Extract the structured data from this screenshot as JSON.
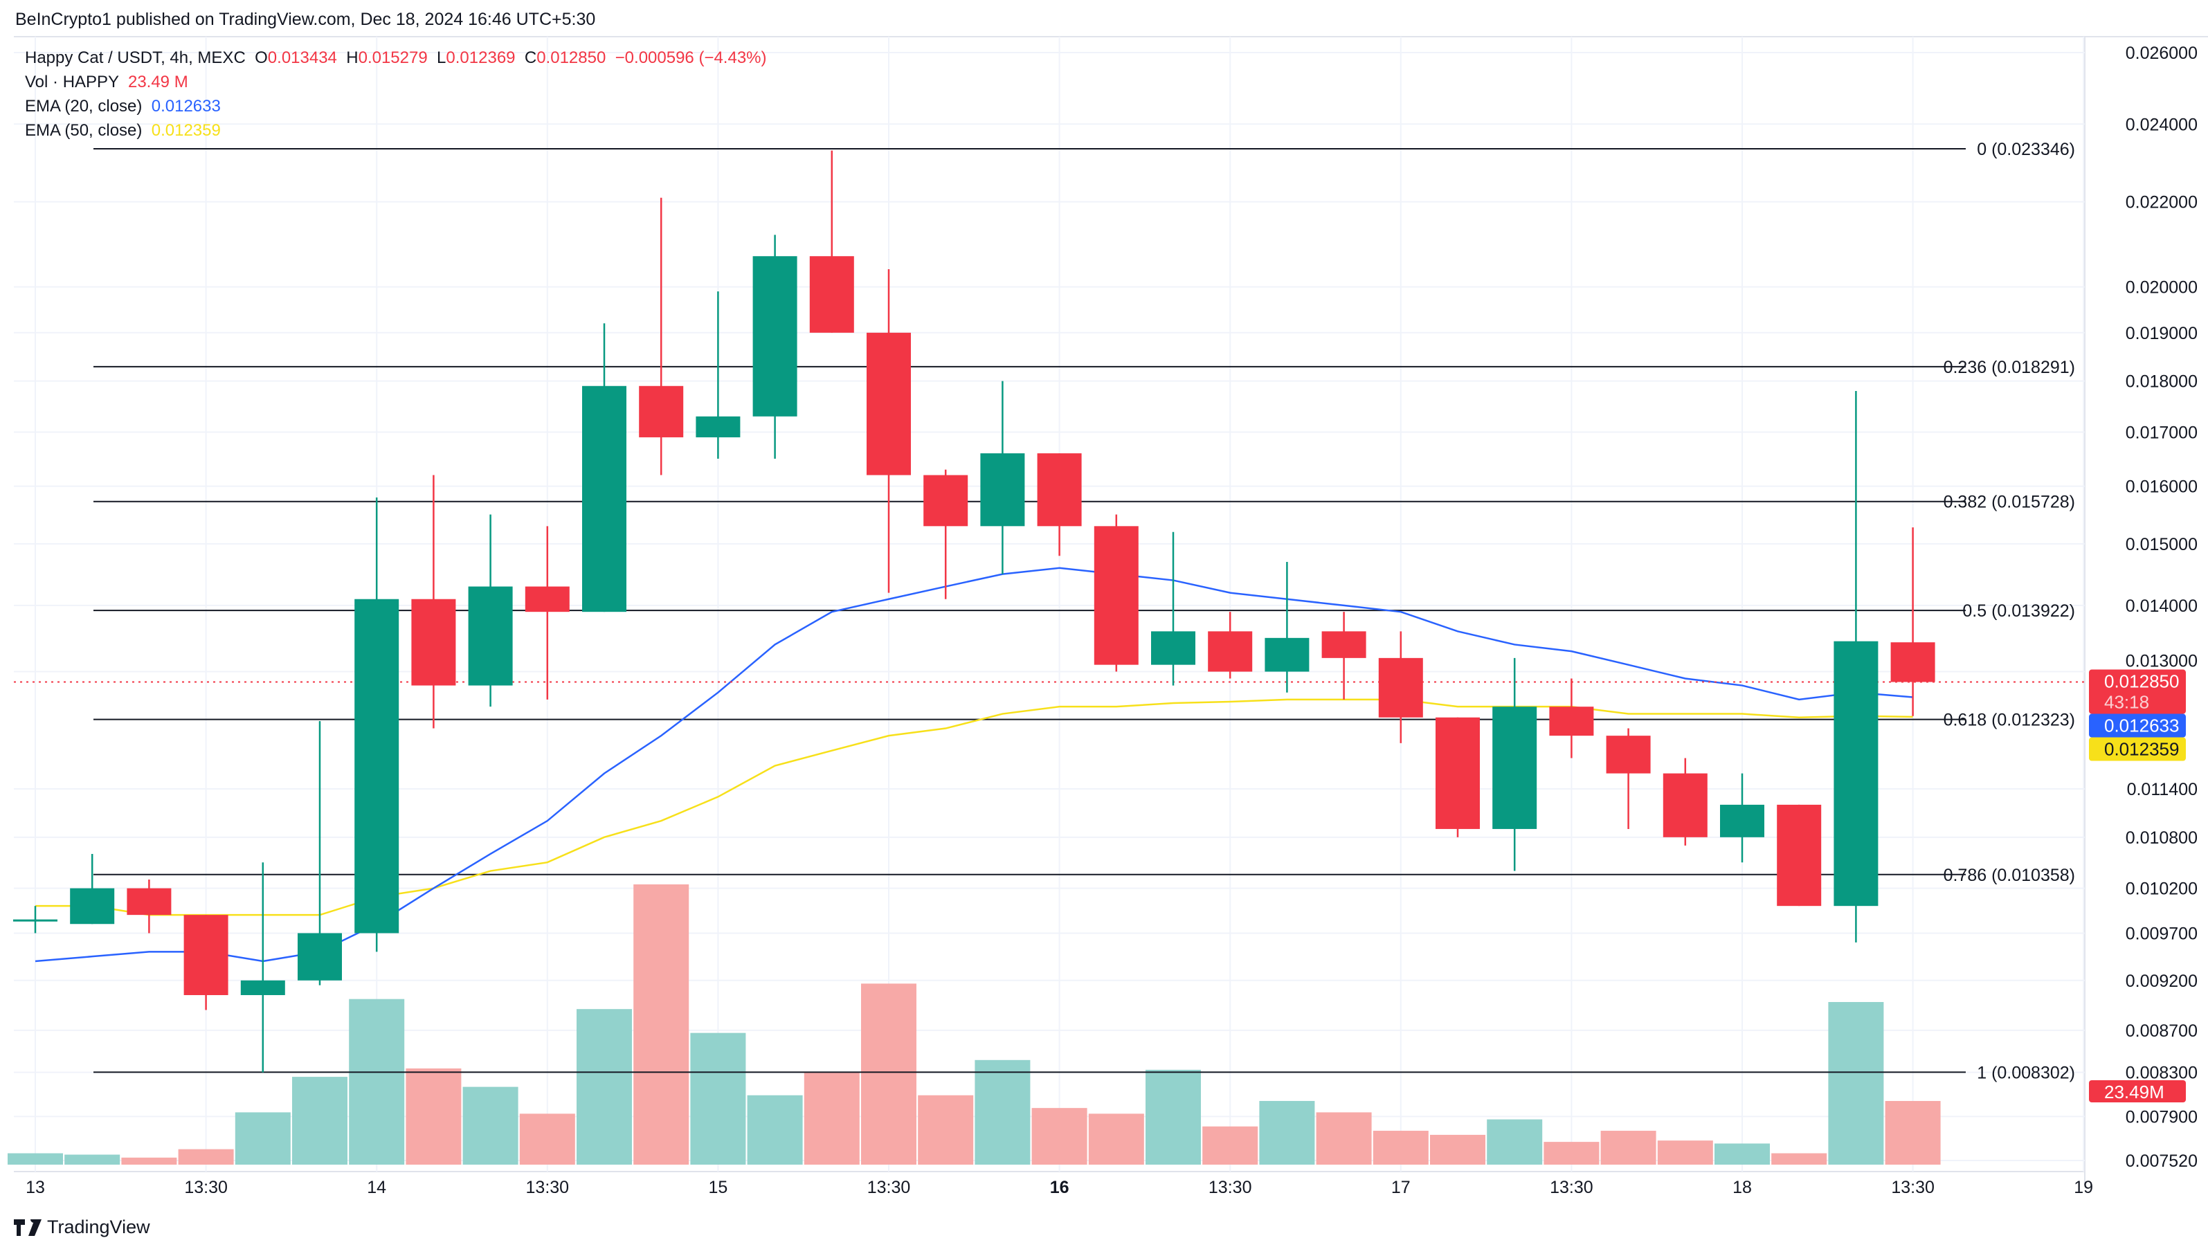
{
  "header": {
    "published": "BeInCrypto1 published on TradingView.com, Dec 18, 2024 16:46 UTC+5:30"
  },
  "legend": {
    "symbol": "Happy Cat / USDT, 4h, MEXC",
    "o_label": "O",
    "o": "0.013434",
    "h_label": "H",
    "h": "0.015279",
    "l_label": "L",
    "l": "0.012369",
    "c_label": "C",
    "c": "0.012850",
    "change": "−0.000596 (−4.43%)",
    "vol_label": "Vol · HAPPY",
    "vol": "23.49 M",
    "ema20_label": "EMA (20, close)",
    "ema20": "0.012633",
    "ema50_label": "EMA (50, close)",
    "ema50": "0.012359"
  },
  "brand": {
    "name": "TradingView",
    "icon": "tradingview-logo-icon"
  },
  "colors": {
    "up": "#089981",
    "down": "#f23645",
    "vol_up": "#92d2cc",
    "vol_down": "#f7a9a7",
    "ema20": "#2962ff",
    "ema50": "#f7e01a",
    "fib": "#131722",
    "grid": "#f0f3fa"
  },
  "chart_data": {
    "type": "candlestick",
    "y_scale": "log",
    "ylim": [
      0.00752,
      0.026
    ],
    "y_ticks": [
      "0.026000",
      "0.024000",
      "0.022000",
      "0.020000",
      "0.019000",
      "0.018000",
      "0.017000",
      "0.016000",
      "0.015000",
      "0.014000",
      "0.013000",
      "0.011400",
      "0.010800",
      "0.010200",
      "0.009700",
      "0.009200",
      "0.008700",
      "0.008300",
      "0.007900",
      "0.007520"
    ],
    "x_ticks": [
      {
        "label": "13",
        "candle": 0
      },
      {
        "label": "13:30",
        "candle": 3
      },
      {
        "label": "14",
        "candle": 6
      },
      {
        "label": "13:30",
        "candle": 9
      },
      {
        "label": "15",
        "candle": 12
      },
      {
        "label": "13:30",
        "candle": 15
      },
      {
        "label": "16",
        "candle": 18,
        "bold": true
      },
      {
        "label": "13:30",
        "candle": 21
      },
      {
        "label": "17",
        "candle": 24
      },
      {
        "label": "13:30",
        "candle": 27
      },
      {
        "label": "18",
        "candle": 30
      },
      {
        "label": "13:30",
        "candle": 33
      },
      {
        "label": "19",
        "candle": 36
      }
    ],
    "grid": true,
    "candles": [
      [
        0.00985,
        0.01,
        0.0097,
        0.00985
      ],
      [
        0.0098,
        0.0106,
        0.0098,
        0.0102
      ],
      [
        0.0102,
        0.0103,
        0.0097,
        0.0099
      ],
      [
        0.0099,
        0.0099,
        0.0089,
        0.00905
      ],
      [
        0.00905,
        0.0105,
        0.0083,
        0.0092
      ],
      [
        0.0092,
        0.0123,
        0.00915,
        0.0097
      ],
      [
        0.0097,
        0.0158,
        0.0095,
        0.0141
      ],
      [
        0.0141,
        0.0162,
        0.0122,
        0.0128
      ],
      [
        0.0128,
        0.0155,
        0.0125,
        0.0143
      ],
      [
        0.0143,
        0.0153,
        0.0126,
        0.0139
      ],
      [
        0.0139,
        0.0192,
        0.0139,
        0.0179
      ],
      [
        0.0179,
        0.0221,
        0.0162,
        0.0169
      ],
      [
        0.0169,
        0.0199,
        0.0165,
        0.0173
      ],
      [
        0.0173,
        0.0212,
        0.0165,
        0.0207
      ],
      [
        0.0207,
        0.0233,
        0.019,
        0.019
      ],
      [
        0.019,
        0.0204,
        0.0142,
        0.0162
      ],
      [
        0.0162,
        0.0163,
        0.0141,
        0.0153
      ],
      [
        0.0153,
        0.018,
        0.0145,
        0.0166
      ],
      [
        0.0166,
        0.0166,
        0.0148,
        0.0153
      ],
      [
        0.0153,
        0.0155,
        0.013,
        0.0131
      ],
      [
        0.0131,
        0.0152,
        0.0128,
        0.0136
      ],
      [
        0.0136,
        0.0139,
        0.0129,
        0.013
      ],
      [
        0.013,
        0.0147,
        0.0127,
        0.0135
      ],
      [
        0.0136,
        0.0139,
        0.0126,
        0.0132
      ],
      [
        0.0132,
        0.0136,
        0.012,
        0.01235
      ],
      [
        0.01235,
        0.01235,
        0.0108,
        0.0109
      ],
      [
        0.0109,
        0.0132,
        0.0104,
        0.0125
      ],
      [
        0.0125,
        0.0129,
        0.0118,
        0.0121
      ],
      [
        0.0121,
        0.0122,
        0.0109,
        0.0116
      ],
      [
        0.0116,
        0.0118,
        0.0107,
        0.0108
      ],
      [
        0.0108,
        0.0116,
        0.0105,
        0.0112
      ],
      [
        0.0112,
        0.0112,
        0.01,
        0.01
      ],
      [
        0.01,
        0.0178,
        0.0096,
        0.01345
      ],
      [
        0.013434,
        0.015279,
        0.012369,
        0.01285
      ]
    ],
    "volume_millions": [
      4.2,
      3.7,
      2.6,
      5.7,
      19.3,
      32.4,
      61.1,
      35.5,
      28.7,
      18.8,
      57.4,
      103.4,
      48.6,
      25.6,
      33.9,
      66.8,
      25.6,
      38.6,
      20.9,
      18.8,
      35.0,
      14.1,
      23.5,
      19.3,
      12.5,
      11.0,
      16.7,
      8.4,
      12.5,
      8.9,
      7.8,
      4.2,
      60.0,
      23.49
    ],
    "ema20": [
      0.0094,
      0.00945,
      0.0095,
      0.0095,
      0.0094,
      0.0095,
      0.0098,
      0.0102,
      0.0106,
      0.011,
      0.0116,
      0.0121,
      0.0127,
      0.0134,
      0.0139,
      0.0141,
      0.0143,
      0.0145,
      0.0146,
      0.0145,
      0.0144,
      0.0142,
      0.0141,
      0.014,
      0.0139,
      0.0136,
      0.0134,
      0.0133,
      0.0131,
      0.0129,
      0.0128,
      0.0126,
      0.0127,
      0.012633
    ],
    "ema50": [
      0.01,
      0.01,
      0.0099,
      0.0099,
      0.0099,
      0.0099,
      0.0101,
      0.0102,
      0.0104,
      0.0105,
      0.0108,
      0.011,
      0.0113,
      0.0117,
      0.0119,
      0.0121,
      0.0122,
      0.0124,
      0.0125,
      0.0125,
      0.01255,
      0.01257,
      0.0126,
      0.0126,
      0.0126,
      0.0125,
      0.0125,
      0.0125,
      0.0124,
      0.0124,
      0.0124,
      0.01235,
      0.01237,
      0.012359
    ],
    "fib_levels": [
      {
        "label": "0 (0.023346)",
        "value": 0.023346
      },
      {
        "label": "0.236 (0.018291)",
        "value": 0.018291
      },
      {
        "label": "0.382 (0.015728)",
        "value": 0.015728
      },
      {
        "label": "0.5 (0.013922)",
        "value": 0.013922
      },
      {
        "label": "0.618 (0.012323)",
        "value": 0.012323
      },
      {
        "label": "0.786 (0.010358)",
        "value": 0.010358
      },
      {
        "label": "1 (0.008302)",
        "value": 0.008302
      }
    ],
    "last_price": {
      "value": 0.01285,
      "label": "0.012850",
      "countdown": "43:18"
    },
    "ema20_tag": "0.012633",
    "ema50_tag": "0.012359",
    "volume_tag": "23.49M"
  }
}
